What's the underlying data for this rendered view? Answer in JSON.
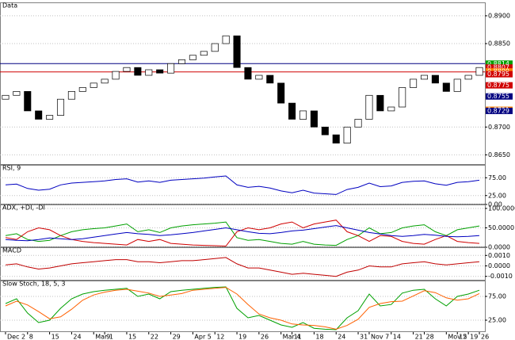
{
  "chart_data": [
    {
      "type": "candlestick",
      "title": "Data",
      "categories": [
        "Dec 2",
        null,
        "8",
        null,
        "15",
        null,
        "24",
        null,
        "Mar 1",
        "9",
        null,
        "15",
        null,
        "22",
        null,
        "29",
        null,
        "Apr 5",
        null,
        "12",
        null,
        "19",
        null,
        "26",
        null,
        "Mar 4",
        "11",
        null,
        "18",
        null,
        "24",
        null,
        "31",
        "Nov 7",
        null,
        "14",
        null,
        "21",
        "28",
        null,
        "Mov 5",
        "12",
        "19",
        "26"
      ],
      "open": [
        0.875,
        0.8757,
        0.8764,
        0.8729,
        0.8714,
        0.8721,
        0.875,
        0.8764,
        0.8771,
        0.8779,
        0.8786,
        0.88,
        0.8807,
        0.8793,
        0.8803,
        0.8797,
        0.8814,
        0.8821,
        0.8829,
        0.8836,
        0.885,
        0.8864,
        0.8807,
        0.8786,
        0.8793,
        0.8779,
        0.8743,
        0.8714,
        0.8729,
        0.87,
        0.8686,
        0.8671,
        0.87,
        0.8714,
        0.8757,
        0.8729,
        0.8736,
        0.8771,
        0.8786,
        0.8793,
        0.8779,
        0.8764,
        0.8786,
        0.8793
      ],
      "close": [
        0.8757,
        0.8764,
        0.8729,
        0.8714,
        0.8721,
        0.875,
        0.8764,
        0.8771,
        0.8779,
        0.8786,
        0.88,
        0.8807,
        0.8793,
        0.8803,
        0.8797,
        0.8814,
        0.8821,
        0.8829,
        0.8836,
        0.885,
        0.8864,
        0.8807,
        0.8786,
        0.8793,
        0.8779,
        0.8743,
        0.8714,
        0.8729,
        0.87,
        0.8686,
        0.8671,
        0.87,
        0.8714,
        0.8757,
        0.8729,
        0.8736,
        0.8771,
        0.8786,
        0.8793,
        0.8779,
        0.8764,
        0.8786,
        0.8793,
        0.8807
      ],
      "up_color": "#ffffff",
      "down_color": "#000000",
      "ylim": [
        0.8632,
        0.8917
      ],
      "yticks": [
        {
          "value": 0.865,
          "label": "0.8650"
        },
        {
          "value": 0.87,
          "label": "0.8700"
        },
        {
          "value": 0.885,
          "label": "0.8850"
        },
        {
          "value": 0.89,
          "label": "0.8900"
        }
      ],
      "hlines": [
        {
          "value": 0.8814,
          "color": "#000080"
        },
        {
          "value": 0.8799,
          "color": "#d00000"
        }
      ],
      "tags": [
        {
          "value": 0.8814,
          "label": "0.8814",
          "color": "#00a000"
        },
        {
          "value": 0.8807,
          "label": "0.8807",
          "color": "#d00000"
        },
        {
          "value": 0.88,
          "label": "0.8800",
          "color": "#ff8000"
        },
        {
          "value": 0.8795,
          "label": "0.8795",
          "color": "#d00000"
        },
        {
          "value": 0.8775,
          "label": "0.8775",
          "color": "#d00000"
        },
        {
          "value": 0.8755,
          "label": "0.8755",
          "color": "#000080"
        },
        {
          "value": 0.8731,
          "label": "0.8731",
          "color": "#ff8000"
        },
        {
          "value": 0.8729,
          "label": "0.8729",
          "color": "#000080"
        }
      ]
    },
    {
      "type": "line",
      "title": "RSI, 9",
      "ylim": [
        0,
        100
      ],
      "yticks": [
        {
          "value": 0,
          "label": "0.00"
        },
        {
          "value": 25,
          "label": "25.00"
        },
        {
          "value": 75,
          "label": "75.00"
        }
      ],
      "series": [
        {
          "color": "#0000c0",
          "values": [
            55,
            57,
            45,
            40,
            43,
            55,
            60,
            62,
            64,
            66,
            70,
            72,
            63,
            66,
            62,
            68,
            70,
            72,
            74,
            77,
            80,
            55,
            48,
            51,
            46,
            38,
            33,
            40,
            32,
            30,
            28,
            42,
            48,
            60,
            50,
            52,
            62,
            65,
            66,
            58,
            54,
            62,
            64,
            68
          ]
        }
      ]
    },
    {
      "type": "line",
      "title": "ADX, +DI, -DI",
      "ylim": [
        0,
        100
      ],
      "yticks": [
        {
          "value": 0,
          "label": "0.0000"
        },
        {
          "value": 50,
          "label": "50.0000"
        },
        {
          "value": 100,
          "label": "100.0000"
        }
      ],
      "series": [
        {
          "color": "#00a000",
          "values": [
            30,
            35,
            20,
            15,
            18,
            30,
            40,
            45,
            48,
            50,
            55,
            60,
            40,
            45,
            38,
            50,
            55,
            58,
            60,
            62,
            65,
            25,
            18,
            20,
            15,
            10,
            8,
            15,
            8,
            6,
            5,
            20,
            30,
            50,
            35,
            38,
            50,
            55,
            58,
            40,
            30,
            45,
            50,
            55
          ]
        },
        {
          "color": "#d00000",
          "values": [
            25,
            20,
            40,
            50,
            45,
            30,
            20,
            15,
            12,
            10,
            8,
            6,
            20,
            15,
            20,
            10,
            8,
            6,
            5,
            4,
            3,
            40,
            50,
            45,
            50,
            60,
            65,
            50,
            60,
            65,
            70,
            40,
            30,
            15,
            30,
            28,
            15,
            10,
            8,
            20,
            30,
            15,
            12,
            10
          ]
        },
        {
          "color": "#0000c0",
          "values": [
            20,
            18,
            17,
            20,
            24,
            22,
            20,
            22,
            26,
            30,
            34,
            38,
            35,
            33,
            30,
            32,
            35,
            38,
            42,
            46,
            50,
            45,
            40,
            36,
            35,
            38,
            42,
            44,
            48,
            52,
            56,
            50,
            44,
            38,
            34,
            30,
            28,
            30,
            33,
            31,
            28,
            27,
            28,
            30
          ]
        }
      ]
    },
    {
      "type": "line",
      "title": "MACD",
      "ylim": [
        -0.0014,
        0.0014
      ],
      "yticks": [
        {
          "value": -0.001,
          "label": "-0.0010"
        },
        {
          "value": 0,
          "label": "0.0000"
        },
        {
          "value": 0.001,
          "label": "0.0010"
        }
      ],
      "series": [
        {
          "color": "#c00000",
          "values": [
            0.0001,
            0.0002,
            -0.0001,
            -0.0003,
            -0.0002,
            0.0,
            0.0002,
            0.0003,
            0.0004,
            0.0005,
            0.0006,
            0.0006,
            0.0004,
            0.0004,
            0.0003,
            0.0004,
            0.0005,
            0.0005,
            0.0006,
            0.0007,
            0.0008,
            0.0002,
            -0.0002,
            -0.0002,
            -0.0004,
            -0.0006,
            -0.0008,
            -0.0007,
            -0.0008,
            -0.0009,
            -0.001,
            -0.0006,
            -0.0004,
            0.0,
            -0.0001,
            -0.0001,
            0.0002,
            0.0003,
            0.0004,
            0.0002,
            0.0001,
            0.0002,
            0.0003,
            0.0004
          ]
        }
      ]
    },
    {
      "type": "line",
      "title": "Slow Stoch, 18, 5, 3",
      "ylim": [
        0,
        100
      ],
      "yticks": [
        {
          "value": 25,
          "label": "25.00"
        },
        {
          "value": 75,
          "label": "75.00"
        }
      ],
      "series": [
        {
          "color": "#00a000",
          "values": [
            60,
            70,
            40,
            20,
            25,
            50,
            70,
            80,
            85,
            88,
            90,
            92,
            75,
            80,
            70,
            85,
            88,
            90,
            92,
            94,
            95,
            50,
            30,
            35,
            25,
            15,
            10,
            20,
            8,
            6,
            5,
            30,
            45,
            80,
            55,
            58,
            82,
            88,
            90,
            70,
            55,
            75,
            80,
            88
          ]
        },
        {
          "color": "#ff6000",
          "values": [
            55,
            65,
            57,
            43,
            28,
            32,
            48,
            67,
            78,
            84,
            88,
            90,
            86,
            82,
            75,
            78,
            81,
            88,
            90,
            92,
            94,
            80,
            58,
            38,
            30,
            25,
            17,
            15,
            14,
            11,
            6,
            14,
            27,
            52,
            60,
            64,
            65,
            76,
            87,
            83,
            72,
            67,
            70,
            81
          ]
        }
      ]
    }
  ]
}
